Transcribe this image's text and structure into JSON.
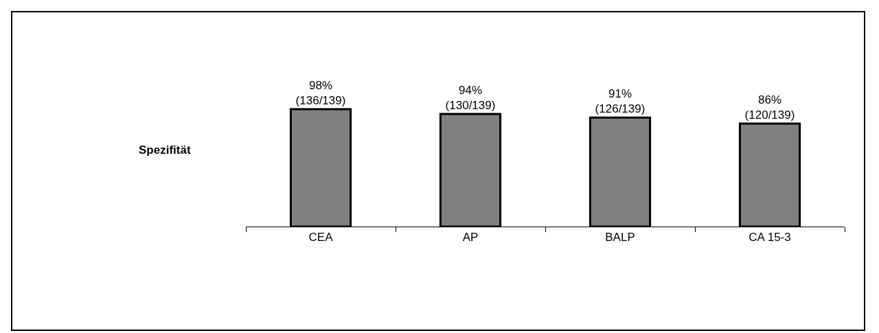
{
  "chart_data": {
    "type": "bar",
    "ylabel": "Spezifität",
    "categories": [
      "CEA",
      "AP",
      "BALP",
      "CA 15-3"
    ],
    "values": [
      98,
      94,
      91,
      86
    ],
    "value_labels": [
      "98%\n(136/139)",
      "94%\n(130/139)",
      "91%\n(126/139)",
      "86%\n(120/139)"
    ],
    "color": "#808080",
    "tick_labels": "x",
    "grid": false,
    "legend": false
  }
}
